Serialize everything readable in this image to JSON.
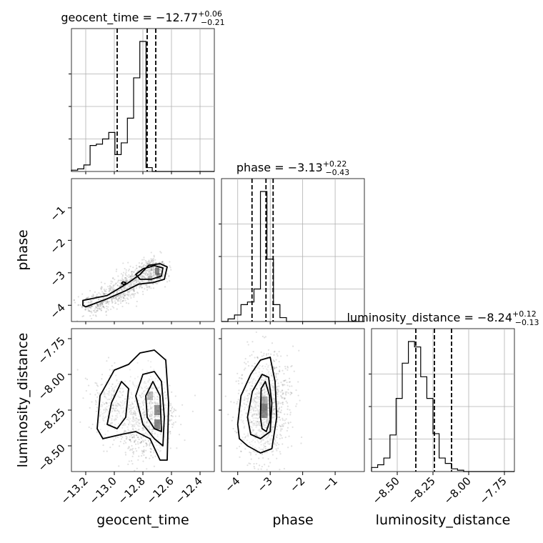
{
  "chart_data": {
    "type": "corner",
    "parameters": [
      {
        "name": "geocent_time",
        "label": "geocent_time",
        "title": {
          "prefix": "geocent_time = ",
          "value": "−12.77",
          "plus": "+0.06",
          "minus": "−0.21"
        },
        "range": [
          -13.3,
          -12.3
        ],
        "ticks": [
          {
            "v": -13.2,
            "label": "−13.2"
          },
          {
            "v": -13.0,
            "label": "−13.0"
          },
          {
            "v": -12.8,
            "label": "−12.8"
          },
          {
            "v": -12.6,
            "label": "−12.6"
          },
          {
            "v": -12.4,
            "label": "−12.4"
          }
        ],
        "quantiles": [
          -12.98,
          -12.77,
          -12.71
        ],
        "hist": {
          "start": -13.3,
          "bin_width": 0.0435,
          "counts": [
            0.01,
            0.02,
            0.05,
            0.2,
            0.21,
            0.25,
            0.3,
            0.13,
            0.22,
            0.41,
            0.72,
            1.0,
            0.03,
            0.0,
            0.0,
            0.0,
            0.0,
            0.0,
            0.0,
            0.0,
            0.0,
            0.0,
            0.0
          ]
        }
      },
      {
        "name": "phase",
        "label": "phase",
        "title": {
          "prefix": "phase = ",
          "value": "−3.13",
          "plus": "+0.22",
          "minus": "−0.43"
        },
        "range": [
          -4.5,
          -0.1
        ],
        "ticks": [
          {
            "v": -4,
            "label": "−4"
          },
          {
            "v": -3,
            "label": "−3"
          },
          {
            "v": -2,
            "label": "−2"
          },
          {
            "v": -1,
            "label": "−1"
          }
        ],
        "quantiles": [
          -3.56,
          -3.13,
          -2.91
        ],
        "hist": {
          "start": -4.5,
          "bin_width": 0.2,
          "counts": [
            0.0,
            0.02,
            0.05,
            0.13,
            0.15,
            0.25,
            1.0,
            0.48,
            0.13,
            0.03,
            0.0,
            0.0,
            0.0,
            0.0,
            0.0,
            0.0,
            0.0,
            0.0,
            0.0,
            0.0,
            0.0,
            0.0
          ]
        }
      },
      {
        "name": "luminosity_distance",
        "label": "luminosity_distance",
        "title": {
          "prefix": "luminosity_distance = ",
          "value": "−8.24",
          "plus": "+0.12",
          "minus": "−0.13"
        },
        "range": [
          -8.68,
          -7.68
        ],
        "ticks": [
          {
            "v": -8.5,
            "label": "−8.50"
          },
          {
            "v": -8.25,
            "label": "−8.25"
          },
          {
            "v": -8.0,
            "label": "−8.00"
          },
          {
            "v": -7.75,
            "label": "−7.75"
          }
        ],
        "quantiles": [
          -8.37,
          -8.24,
          -8.12
        ],
        "hist": {
          "start": -8.68,
          "bin_width": 0.043,
          "counts": [
            0.03,
            0.05,
            0.1,
            0.27,
            0.54,
            0.8,
            0.96,
            0.92,
            0.7,
            0.54,
            0.28,
            0.1,
            0.06,
            0.02,
            0.01,
            0.0,
            0.0,
            0.0,
            0.0,
            0.0,
            0.0,
            0.0,
            0.0,
            0.0
          ]
        }
      }
    ],
    "panels": [
      {
        "x": "geocent_time",
        "y": "phase",
        "mode": "ridge",
        "points": [
          [
            -13.2,
            -4.05
          ],
          [
            -13.05,
            -3.8
          ],
          [
            -12.93,
            -3.5
          ],
          [
            -12.83,
            -3.15
          ],
          [
            -12.75,
            -2.95
          ],
          [
            -12.7,
            -2.88
          ]
        ],
        "spread_x": 0.05,
        "spread_y": 0.18,
        "contours": [
          [
            [
              -13.22,
              -4.0
            ],
            [
              -13.22,
              -3.85
            ],
            [
              -13.05,
              -3.7
            ],
            [
              -12.9,
              -3.3
            ],
            [
              -12.82,
              -3.05
            ],
            [
              -12.76,
              -2.77
            ],
            [
              -12.68,
              -2.72
            ],
            [
              -12.63,
              -2.82
            ],
            [
              -12.65,
              -3.2
            ],
            [
              -12.73,
              -3.3
            ],
            [
              -12.83,
              -3.35
            ],
            [
              -12.92,
              -3.55
            ],
            [
              -13.05,
              -3.8
            ],
            [
              -13.2,
              -4.05
            ]
          ],
          [
            [
              -12.85,
              -3.05
            ],
            [
              -12.8,
              -2.88
            ],
            [
              -12.72,
              -2.78
            ],
            [
              -12.66,
              -2.85
            ],
            [
              -12.67,
              -3.1
            ],
            [
              -12.74,
              -3.2
            ],
            [
              -12.82,
              -3.2
            ]
          ],
          [
            [
              -12.95,
              -3.32
            ],
            [
              -12.94,
              -3.28
            ],
            [
              -12.92,
              -3.3
            ],
            [
              -12.93,
              -3.37
            ]
          ]
        ],
        "dense_bins": [
          [
            -12.75,
            -3.18,
            0.03,
            0.18,
            0.45
          ],
          [
            -12.7,
            -2.95,
            0.03,
            0.22,
            0.9
          ],
          [
            -12.69,
            -3.1,
            0.03,
            0.18,
            0.7
          ]
        ]
      },
      {
        "x": "geocent_time",
        "y": "luminosity_distance",
        "mode": "cluster",
        "points": [
          [
            -13.02,
            -8.22
          ],
          [
            -12.75,
            -8.22
          ],
          [
            -12.7,
            -8.3
          ],
          [
            -12.85,
            -8.38
          ]
        ],
        "spread_x": 0.07,
        "spread_y": 0.12,
        "contours": [
          [
            [
              -13.12,
              -8.38
            ],
            [
              -13.1,
              -8.15
            ],
            [
              -13.0,
              -7.97
            ],
            [
              -12.9,
              -7.93
            ],
            [
              -12.82,
              -7.85
            ],
            [
              -12.72,
              -7.83
            ],
            [
              -12.64,
              -7.9
            ],
            [
              -12.62,
              -8.2
            ],
            [
              -12.63,
              -8.6
            ],
            [
              -12.68,
              -8.6
            ],
            [
              -12.75,
              -8.45
            ],
            [
              -12.85,
              -8.4
            ],
            [
              -12.95,
              -8.42
            ],
            [
              -13.08,
              -8.45
            ]
          ],
          [
            [
              -13.05,
              -8.35
            ],
            [
              -13.02,
              -8.2
            ],
            [
              -12.95,
              -8.05
            ],
            [
              -12.9,
              -8.1
            ],
            [
              -12.92,
              -8.3
            ],
            [
              -12.98,
              -8.38
            ]
          ],
          [
            [
              -12.85,
              -8.15
            ],
            [
              -12.8,
              -8.0
            ],
            [
              -12.72,
              -7.98
            ],
            [
              -12.67,
              -8.05
            ],
            [
              -12.65,
              -8.3
            ],
            [
              -12.66,
              -8.5
            ],
            [
              -12.72,
              -8.45
            ],
            [
              -12.8,
              -8.35
            ]
          ],
          [
            [
              -12.78,
              -8.15
            ],
            [
              -12.73,
              -8.05
            ],
            [
              -12.68,
              -8.15
            ],
            [
              -12.67,
              -8.4
            ],
            [
              -12.72,
              -8.38
            ],
            [
              -12.77,
              -8.3
            ]
          ]
        ],
        "dense_bins": [
          [
            -12.75,
            -8.15,
            0.04,
            0.06,
            0.5
          ],
          [
            -12.7,
            -8.25,
            0.04,
            0.07,
            0.8
          ],
          [
            -12.7,
            -8.35,
            0.04,
            0.07,
            0.9
          ]
        ]
      },
      {
        "x": "phase",
        "y": "luminosity_distance",
        "mode": "cluster",
        "points": [
          [
            -3.15,
            -8.25
          ],
          [
            -3.4,
            -8.3
          ],
          [
            -3.0,
            -8.15
          ]
        ],
        "spread_x": 0.35,
        "spread_y": 0.16,
        "contours": [
          [
            [
              -4.0,
              -8.35
            ],
            [
              -3.9,
              -8.15
            ],
            [
              -3.6,
              -8.0
            ],
            [
              -3.3,
              -7.9
            ],
            [
              -3.0,
              -7.88
            ],
            [
              -2.85,
              -8.05
            ],
            [
              -2.8,
              -8.3
            ],
            [
              -2.95,
              -8.52
            ],
            [
              -3.3,
              -8.55
            ],
            [
              -3.7,
              -8.5
            ],
            [
              -3.95,
              -8.45
            ]
          ],
          [
            [
              -3.7,
              -8.3
            ],
            [
              -3.55,
              -8.12
            ],
            [
              -3.25,
              -8.0
            ],
            [
              -3.05,
              -8.02
            ],
            [
              -2.95,
              -8.2
            ],
            [
              -3.0,
              -8.4
            ],
            [
              -3.3,
              -8.45
            ],
            [
              -3.6,
              -8.42
            ]
          ],
          [
            [
              -3.3,
              -8.3
            ],
            [
              -3.28,
              -8.1
            ],
            [
              -3.15,
              -8.05
            ],
            [
              -3.02,
              -8.15
            ],
            [
              -3.0,
              -8.32
            ],
            [
              -3.12,
              -8.4
            ],
            [
              -3.25,
              -8.38
            ]
          ]
        ],
        "dense_bins": [
          [
            -3.18,
            -8.18,
            0.2,
            0.05,
            0.6
          ],
          [
            -3.18,
            -8.23,
            0.2,
            0.05,
            0.95
          ],
          [
            -3.18,
            -8.28,
            0.2,
            0.05,
            0.85
          ]
        ]
      }
    ],
    "grid": true
  }
}
